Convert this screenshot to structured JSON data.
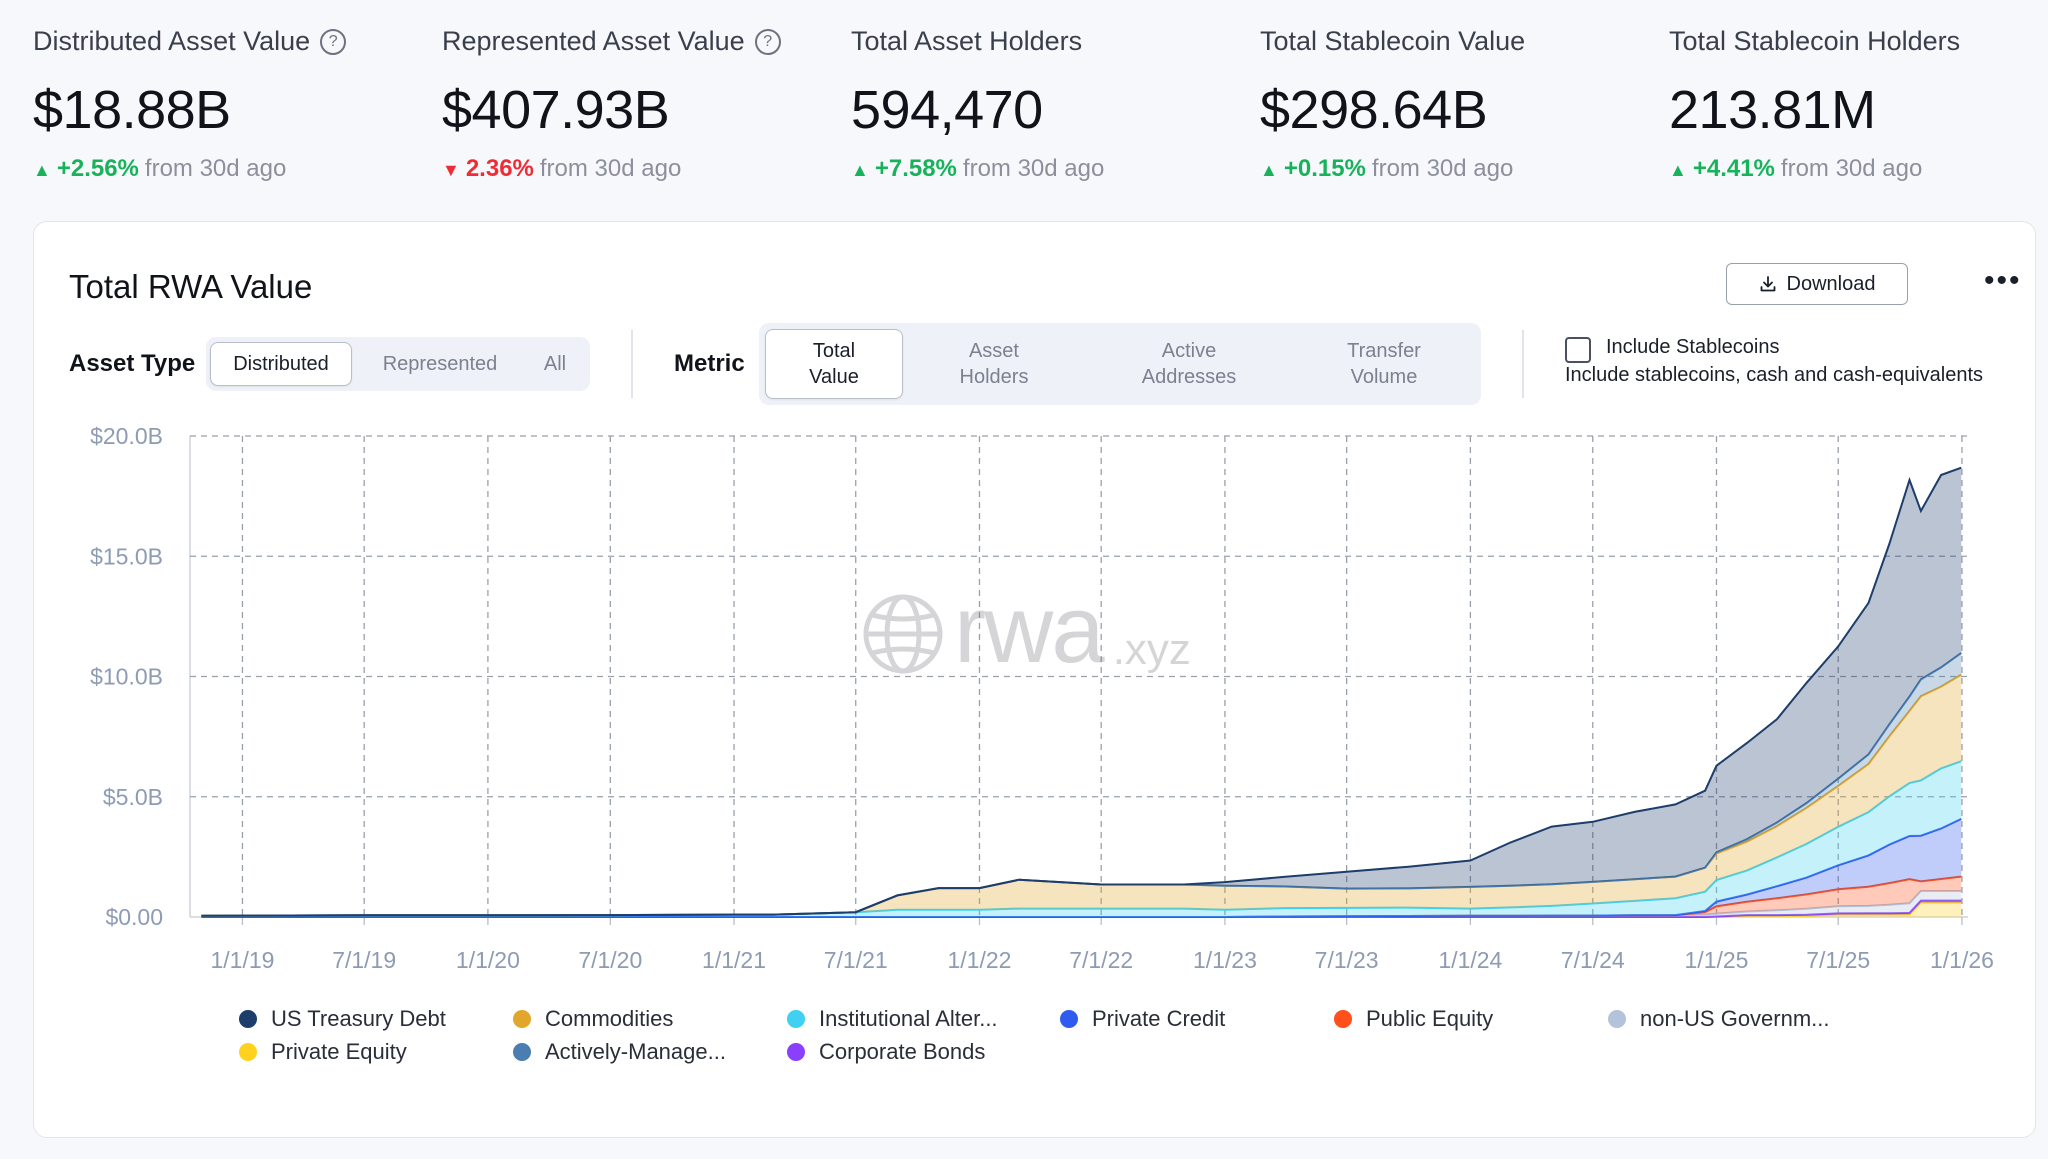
{
  "stats": [
    {
      "label": "Distributed Asset Value",
      "help": true,
      "value": "$18.88B",
      "arrow": "▲",
      "direction": "up",
      "change": "+2.56%",
      "suffix": "from 30d ago"
    },
    {
      "label": "Represented Asset Value",
      "help": true,
      "value": "$407.93B",
      "arrow": "▼",
      "direction": "down",
      "change": "2.36%",
      "suffix": "from 30d ago"
    },
    {
      "label": "Total Asset Holders",
      "help": false,
      "value": "594,470",
      "arrow": "▲",
      "direction": "up",
      "change": "+7.58%",
      "suffix": "from 30d ago"
    },
    {
      "label": "Total Stablecoin Value",
      "help": false,
      "value": "$298.64B",
      "arrow": "▲",
      "direction": "up",
      "change": "+0.15%",
      "suffix": "from 30d ago"
    },
    {
      "label": "Total Stablecoin Holders",
      "help": false,
      "value": "213.81M",
      "arrow": "▲",
      "direction": "up",
      "change": "+4.41%",
      "suffix": "from 30d ago"
    }
  ],
  "card": {
    "title": "Total RWA Value",
    "download_label": "Download",
    "more_label": "•••",
    "asset_type_label": "Asset Type",
    "asset_types": [
      "Distributed",
      "Represented",
      "All"
    ],
    "asset_type_selected": "Distributed",
    "metric_label": "Metric",
    "metrics": [
      "Total\nValue",
      "Asset\nHolders",
      "Active\nAddresses",
      "Transfer\nVolume"
    ],
    "metric_selected": "Total\nValue",
    "include_stablecoins_label": "Include Stablecoins",
    "include_stablecoins_checked": false,
    "include_stablecoins_desc": "Include stablecoins, cash and cash-equivalents"
  },
  "watermark": {
    "main": "rwa",
    "suffix": ".xyz"
  },
  "chart_data": {
    "type": "area",
    "stacked": true,
    "title": "Total RWA Value",
    "y_tick_labels": [
      "$0.00",
      "$5.0B",
      "$10.0B",
      "$15.0B",
      "$20.0B"
    ],
    "ylim": [
      0,
      20
    ],
    "y_unit": "$B",
    "x_tick_labels": [
      "1/1/19",
      "7/1/19",
      "1/1/20",
      "7/1/20",
      "1/1/21",
      "7/1/21",
      "1/1/22",
      "7/1/22",
      "1/1/23",
      "7/1/23",
      "1/1/24",
      "7/1/24",
      "1/1/25",
      "7/1/25",
      "1/1/26"
    ],
    "grid": true,
    "legend_position": "bottom",
    "x": [
      "2018-11-01",
      "2019-01-01",
      "2019-07-01",
      "2020-01-01",
      "2020-07-01",
      "2021-01-01",
      "2021-03-01",
      "2021-07-01",
      "2021-09-01",
      "2021-11-01",
      "2022-01-01",
      "2022-03-01",
      "2022-07-01",
      "2022-11-01",
      "2023-01-01",
      "2023-04-01",
      "2023-07-01",
      "2023-10-01",
      "2024-01-01",
      "2024-03-01",
      "2024-05-01",
      "2024-07-01",
      "2024-09-01",
      "2024-11-01",
      "2024-12-15",
      "2025-01-01",
      "2025-02-15",
      "2025-04-01",
      "2025-05-15",
      "2025-07-01",
      "2025-08-15",
      "2025-09-15",
      "2025-10-15",
      "2025-11-01",
      "2025-12-01",
      "2025-12-31"
    ],
    "series": [
      {
        "name": "Private Equity",
        "color": "#ffd21f",
        "values": [
          0,
          0,
          0,
          0,
          0,
          0,
          0,
          0,
          0,
          0,
          0,
          0,
          0,
          0,
          0,
          0,
          0,
          0,
          0,
          0,
          0,
          0,
          0,
          0,
          0,
          0,
          0.05,
          0.05,
          0.05,
          0.1,
          0.1,
          0.1,
          0.1,
          0.6,
          0.6,
          0.6
        ]
      },
      {
        "name": "Corporate Bonds",
        "color": "#8a3ffc",
        "values": [
          0,
          0,
          0,
          0,
          0,
          0,
          0,
          0,
          0,
          0,
          0,
          0,
          0,
          0,
          0,
          0,
          0,
          0,
          0,
          0,
          0,
          0,
          0,
          0,
          0,
          0.02,
          0.03,
          0.03,
          0.04,
          0.05,
          0.06,
          0.06,
          0.07,
          0.08,
          0.08,
          0.08
        ]
      },
      {
        "name": "non-US Government Debt",
        "color": "#b3c3db",
        "values": [
          0,
          0,
          0,
          0,
          0,
          0,
          0,
          0,
          0,
          0,
          0,
          0,
          0,
          0,
          0,
          0.02,
          0.03,
          0.04,
          0.05,
          0.05,
          0.06,
          0.06,
          0.07,
          0.08,
          0.1,
          0.12,
          0.15,
          0.2,
          0.25,
          0.3,
          0.3,
          0.35,
          0.4,
          0.4,
          0.4,
          0.4
        ]
      },
      {
        "name": "Public Equity",
        "color": "#ff4f1a",
        "values": [
          0,
          0,
          0,
          0,
          0,
          0,
          0,
          0,
          0,
          0,
          0,
          0,
          0,
          0,
          0,
          0,
          0,
          0,
          0,
          0,
          0,
          0,
          0,
          0,
          0.1,
          0.3,
          0.4,
          0.5,
          0.6,
          0.7,
          0.8,
          0.9,
          1.0,
          0.4,
          0.5,
          0.6
        ]
      },
      {
        "name": "Private Credit",
        "color": "#2f5bf0",
        "values": [
          0,
          0,
          0,
          0,
          0,
          0,
          0,
          0,
          0,
          0,
          0,
          0,
          0,
          0,
          0,
          0,
          0,
          0,
          0,
          0,
          0,
          0,
          0,
          0,
          0.05,
          0.2,
          0.3,
          0.5,
          0.7,
          1.0,
          1.3,
          1.6,
          1.8,
          1.9,
          2.1,
          2.4
        ]
      },
      {
        "name": "Institutional Alternative Funds",
        "color": "#3fd0f2",
        "values": [
          0.05,
          0.06,
          0.07,
          0.07,
          0.08,
          0.1,
          0.1,
          0.2,
          0.3,
          0.3,
          0.3,
          0.35,
          0.35,
          0.35,
          0.3,
          0.35,
          0.35,
          0.35,
          0.3,
          0.35,
          0.4,
          0.5,
          0.6,
          0.7,
          0.8,
          0.9,
          1.0,
          1.2,
          1.4,
          1.6,
          1.8,
          2.0,
          2.2,
          2.3,
          2.5,
          2.4
        ]
      },
      {
        "name": "Commodities",
        "color": "#e2a72a",
        "values": [
          0,
          0,
          0,
          0,
          0,
          0,
          0,
          0,
          0.6,
          0.9,
          0.9,
          1.2,
          1.0,
          1.0,
          1.0,
          0.9,
          0.8,
          0.8,
          0.9,
          0.9,
          0.9,
          0.9,
          0.9,
          0.9,
          1.0,
          1.1,
          1.2,
          1.3,
          1.5,
          1.7,
          2.0,
          2.5,
          3.0,
          3.5,
          3.4,
          3.6
        ]
      },
      {
        "name": "Actively-Managed Strategies",
        "color": "#4a7db0",
        "values": [
          0,
          0,
          0,
          0,
          0,
          0,
          0,
          0,
          0,
          0,
          0,
          0,
          0,
          0,
          0,
          0,
          0,
          0,
          0,
          0,
          0,
          0,
          0,
          0,
          0,
          0.05,
          0.1,
          0.15,
          0.2,
          0.3,
          0.4,
          0.5,
          0.6,
          0.7,
          0.8,
          0.9
        ]
      },
      {
        "name": "US Treasury Debt",
        "color": "#1d3d6b",
        "values": [
          0,
          0,
          0,
          0,
          0,
          0,
          0,
          0,
          0,
          0,
          0,
          0,
          0,
          0,
          0.15,
          0.4,
          0.7,
          0.9,
          1.1,
          1.8,
          2.4,
          2.5,
          2.8,
          3.0,
          3.2,
          3.6,
          4.0,
          4.3,
          5.0,
          5.5,
          6.3,
          7.5,
          9.0,
          7.0,
          8.0,
          7.7
        ]
      }
    ]
  },
  "legend": [
    {
      "label": "US Treasury Debt",
      "color": "#1d3d6b"
    },
    {
      "label": "Commodities",
      "color": "#e2a72a"
    },
    {
      "label": "Institutional Alter...",
      "color": "#3fd0f2"
    },
    {
      "label": "Private Credit",
      "color": "#2f5bf0"
    },
    {
      "label": "Public Equity",
      "color": "#ff4f1a"
    },
    {
      "label": "non-US Governm...",
      "color": "#b3c3db"
    },
    {
      "label": "Private Equity",
      "color": "#ffd21f"
    },
    {
      "label": "Actively-Manage...",
      "color": "#4a7db0"
    },
    {
      "label": "Corporate Bonds",
      "color": "#8a3ffc"
    }
  ]
}
